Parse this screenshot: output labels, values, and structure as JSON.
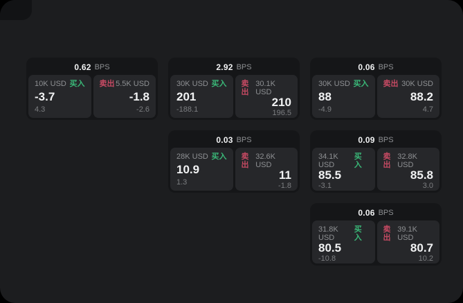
{
  "labels": {
    "buy": "买入",
    "sell": "卖出",
    "bps_unit": "BPS"
  },
  "colors": {
    "outside": "#000000",
    "surface": "#1c1d1f",
    "card": "#151618",
    "panel": "#26272a",
    "buy_green": "#3ab878",
    "sell_red": "#c64a63"
  },
  "cards": [
    {
      "bps": "0.62",
      "col": 1,
      "row": 1,
      "buy": {
        "size": "10K USD",
        "price": "-3.7",
        "sub": "4.3"
      },
      "sell": {
        "size": "5.5K USD",
        "price": "-1.8",
        "sub": "-2.6"
      }
    },
    {
      "bps": "2.92",
      "col": 2,
      "row": 1,
      "buy": {
        "size": "30K USD",
        "price": "201",
        "sub": "-188.1"
      },
      "sell": {
        "size": "30.1K USD",
        "price": "210",
        "sub": "196.5"
      }
    },
    {
      "bps": "0.06",
      "col": 3,
      "row": 1,
      "buy": {
        "size": "30K USD",
        "price": "88",
        "sub": "-4.9"
      },
      "sell": {
        "size": "30K USD",
        "price": "88.2",
        "sub": "4.7"
      }
    },
    {
      "bps": "0.03",
      "col": 2,
      "row": 2,
      "buy": {
        "size": "28K USD",
        "price": "10.9",
        "sub": "1.3"
      },
      "sell": {
        "size": "32.6K USD",
        "price": "11",
        "sub": "-1.8"
      }
    },
    {
      "bps": "0.09",
      "col": 3,
      "row": 2,
      "buy": {
        "size": "34.1K USD",
        "price": "85.5",
        "sub": "-3.1"
      },
      "sell": {
        "size": "32.8K USD",
        "price": "85.8",
        "sub": "3.0"
      }
    },
    {
      "bps": "0.06",
      "col": 3,
      "row": 3,
      "buy": {
        "size": "31.8K USD",
        "price": "80.5",
        "sub": "-10.8"
      },
      "sell": {
        "size": "39.1K USD",
        "price": "80.7",
        "sub": "10.2"
      }
    }
  ]
}
